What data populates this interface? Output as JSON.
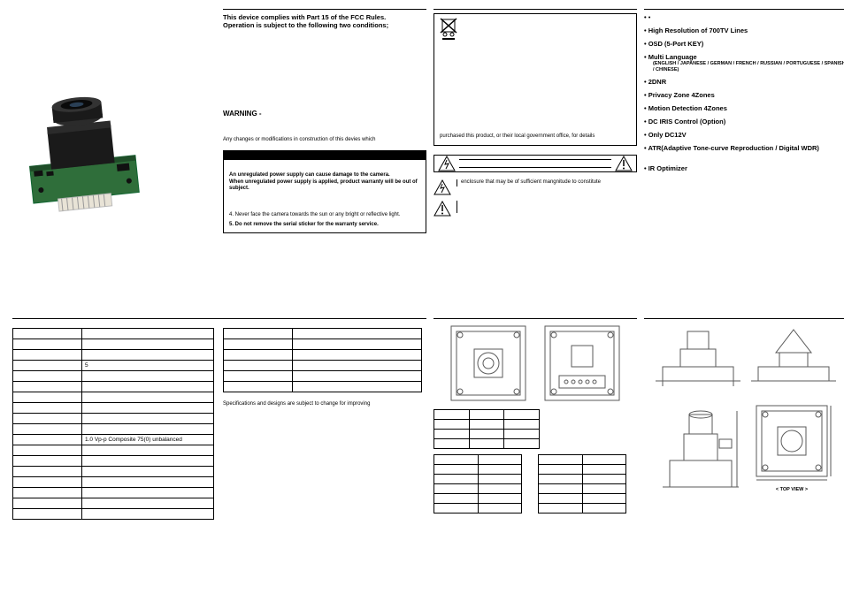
{
  "col1_top": {
    "fcc_line1": "This device complies with Part 15 of the FCC Rules.",
    "fcc_line2": "Operation is subject to the following two conditions;",
    "warning_heading": "WARNING -",
    "changes_text": "Any changes or modifications in construction of this devies which",
    "psu_line1": "An unregulated power supply can cause damage to the camera.",
    "psu_line2": "When unregulated power supply is applied, product warranty will be out of subject.",
    "note4": "4. Never face the camera towards the sun or any bright or reflective light.",
    "note5": "5. Do not remove the serial sticker for the warranty service."
  },
  "col2_top": {
    "weee_text": "purchased this product, or their local government office, for details",
    "caution_text": "enclosure that may be of sufficient mangnitude to constitute"
  },
  "features": {
    "f1": "High Resolution of 700TV Lines",
    "f2": "OSD (5-Port KEY)",
    "f3": "Multi Language",
    "f3_sub": "(ENGLISH / JAPANESE / GERMAN / FRENCH / RUSSIAN / PORTUGUESE / SPANISH / CHINESE)",
    "f4": "2DNR",
    "f5": "Privacy Zone 4Zones",
    "f6": "Motion Detection 4Zones",
    "f7": "DC IRIS Control (Option)",
    "f8": "Only DC12V",
    "f9": "ATR(Adaptive Tone-curve Reproduction / Digital WDR)",
    "f10": "IR Optimizer"
  },
  "spec": {
    "title": "",
    "rows": [
      [
        "",
        ""
      ],
      [
        "",
        ""
      ],
      [
        "",
        ""
      ],
      [
        "",
        "5"
      ],
      [
        "",
        ""
      ],
      [
        "",
        ""
      ],
      [
        "",
        ""
      ],
      [
        "",
        ""
      ],
      [
        "",
        ""
      ],
      [
        "",
        ""
      ],
      [
        "",
        "1.0 Vp-p Composite 75(0) unbalanced"
      ],
      [
        "",
        ""
      ],
      [
        "",
        ""
      ],
      [
        "",
        ""
      ],
      [
        "",
        ""
      ],
      [
        "",
        ""
      ],
      [
        "",
        ""
      ],
      [
        "",
        ""
      ]
    ]
  },
  "spec_note": "Specifications and designs are subject to change for improving",
  "conn": {
    "t1_rows": 4,
    "t2_rows": 6,
    "t3_rows": 6
  },
  "dim": {
    "top_view_label": "< TOP VIEW >"
  },
  "colors": {
    "line": "#000000",
    "bg": "#ffffff",
    "camera_body": "#2b2b2b",
    "camera_pcb": "#2f6e3a",
    "camera_conn": "#e8e3d6",
    "diagram_stroke": "#5a5a5a"
  }
}
